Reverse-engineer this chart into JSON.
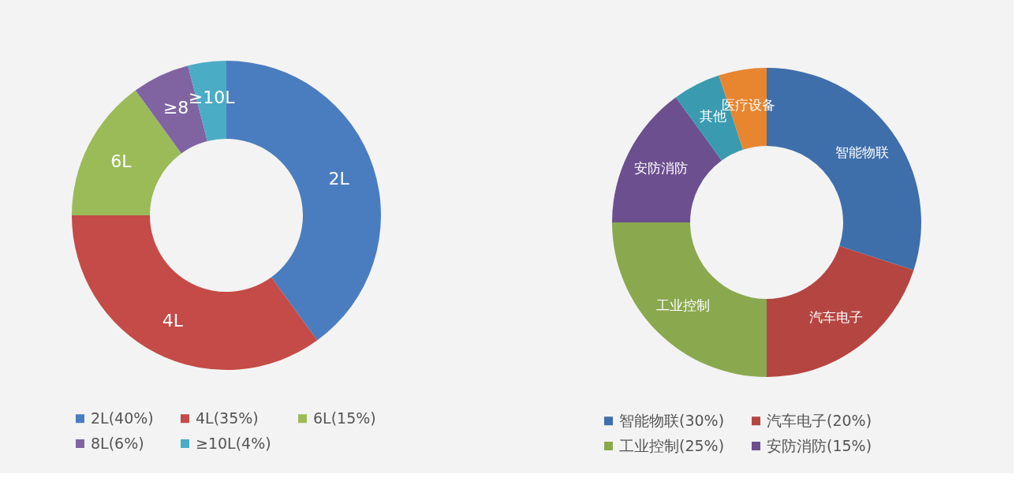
{
  "chart_data": [
    {
      "type": "donut",
      "categories": [
        "2L(40%)",
        "4L(35%)",
        "6L(15%)",
        "8L(6%)",
        "≥10L(4%)"
      ],
      "values": [
        40,
        35,
        15,
        6,
        4
      ],
      "colors": [
        "#4a7dbf",
        "#c44b47",
        "#9bbb59",
        "#8064a2",
        "#4bacc6"
      ],
      "annotations": [
        "2L",
        "4L",
        "6L",
        "≥8",
        "≥10L"
      ],
      "legend": "bottom"
    },
    {
      "type": "donut",
      "categories": [
        "智能物联(30%)",
        "汽车电子(20%)",
        "工业控制(25%)",
        "安防消防(15%)",
        null,
        null
      ],
      "values": [
        30,
        20,
        25,
        15,
        5,
        5
      ],
      "colors": [
        "#3f6fab",
        "#b54541",
        "#8aa94f",
        "#6c4f8f",
        "#3a9bb0",
        "#e8852f"
      ],
      "annotations": [
        "智能物联",
        "汽车电子",
        "工业控制",
        "安防消防",
        "其他",
        "医疗设备"
      ],
      "legend": "bottom"
    }
  ]
}
